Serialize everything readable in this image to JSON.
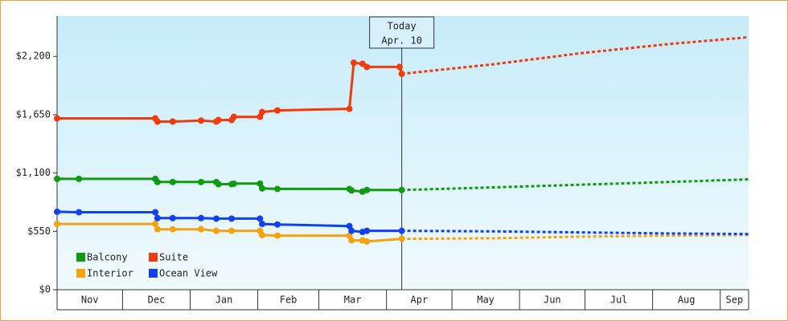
{
  "chart_data": {
    "type": "line",
    "annotation": {
      "title": "Today",
      "subtitle": "Apr. 10",
      "x": 158
    },
    "xlim": [
      0,
      317
    ],
    "xticks": [
      {
        "value": 0,
        "label": "Nov"
      },
      {
        "value": 30,
        "label": "Dec"
      },
      {
        "value": 61,
        "label": "Jan"
      },
      {
        "value": 92,
        "label": "Feb"
      },
      {
        "value": 120,
        "label": "Mar"
      },
      {
        "value": 151,
        "label": "Apr"
      },
      {
        "value": 181,
        "label": "May"
      },
      {
        "value": 212,
        "label": "Jun"
      },
      {
        "value": 242,
        "label": "Jul"
      },
      {
        "value": 273,
        "label": "Aug"
      },
      {
        "value": 304,
        "label": "Sep"
      }
    ],
    "ylim": [
      0,
      2580
    ],
    "yticks": [
      {
        "value": 0,
        "label": "$0"
      },
      {
        "value": 550,
        "label": "$550"
      },
      {
        "value": 1100,
        "label": "$1,100"
      },
      {
        "value": 1650,
        "label": "$1,650"
      },
      {
        "value": 2200,
        "label": "$2,200"
      }
    ],
    "series": [
      {
        "name": "Balcony",
        "color": "#109a10",
        "x": [
          0,
          10,
          45,
          46,
          53,
          66,
          73,
          74,
          80,
          81,
          93,
          94,
          101,
          134,
          135,
          140,
          142,
          158
        ],
        "values": [
          1045,
          1045,
          1045,
          1015,
          1015,
          1015,
          1015,
          995,
          995,
          1000,
          1000,
          955,
          950,
          950,
          935,
          925,
          940,
          940
        ],
        "forecast": {
          "x": [
            158,
            200,
            240,
            280,
            317
          ],
          "values": [
            940,
            965,
            990,
            1015,
            1040
          ]
        }
      },
      {
        "name": "Suite",
        "color": "#f03a10",
        "x": [
          0,
          45,
          46,
          53,
          66,
          73,
          74,
          80,
          81,
          93,
          94,
          101,
          134,
          136,
          140,
          142,
          157,
          158
        ],
        "values": [
          1615,
          1615,
          1585,
          1585,
          1595,
          1585,
          1600,
          1600,
          1630,
          1630,
          1675,
          1690,
          1705,
          2140,
          2130,
          2100,
          2100,
          2035
        ],
        "forecast": {
          "x": [
            158,
            200,
            240,
            280,
            317
          ],
          "values": [
            2035,
            2125,
            2230,
            2315,
            2380
          ]
        }
      },
      {
        "name": "Interior",
        "color": "#f6a20c",
        "x": [
          0,
          45,
          46,
          53,
          66,
          73,
          80,
          93,
          94,
          101,
          134,
          135,
          140,
          142,
          158
        ],
        "values": [
          620,
          620,
          570,
          570,
          570,
          555,
          555,
          555,
          515,
          510,
          510,
          465,
          465,
          455,
          480
        ],
        "forecast": {
          "x": [
            158,
            200,
            240,
            280,
            317
          ],
          "values": [
            480,
            485,
            500,
            510,
            515
          ]
        }
      },
      {
        "name": "Ocean View",
        "color": "#1040f0",
        "x": [
          0,
          10,
          45,
          46,
          53,
          66,
          73,
          80,
          93,
          94,
          101,
          134,
          135,
          140,
          142,
          158
        ],
        "values": [
          735,
          730,
          730,
          675,
          675,
          675,
          670,
          670,
          670,
          620,
          615,
          600,
          555,
          545,
          555,
          555
        ],
        "forecast": {
          "x": [
            158,
            200,
            240,
            280,
            317
          ],
          "values": [
            555,
            550,
            540,
            530,
            525
          ]
        }
      }
    ],
    "legend": "lower left"
  }
}
